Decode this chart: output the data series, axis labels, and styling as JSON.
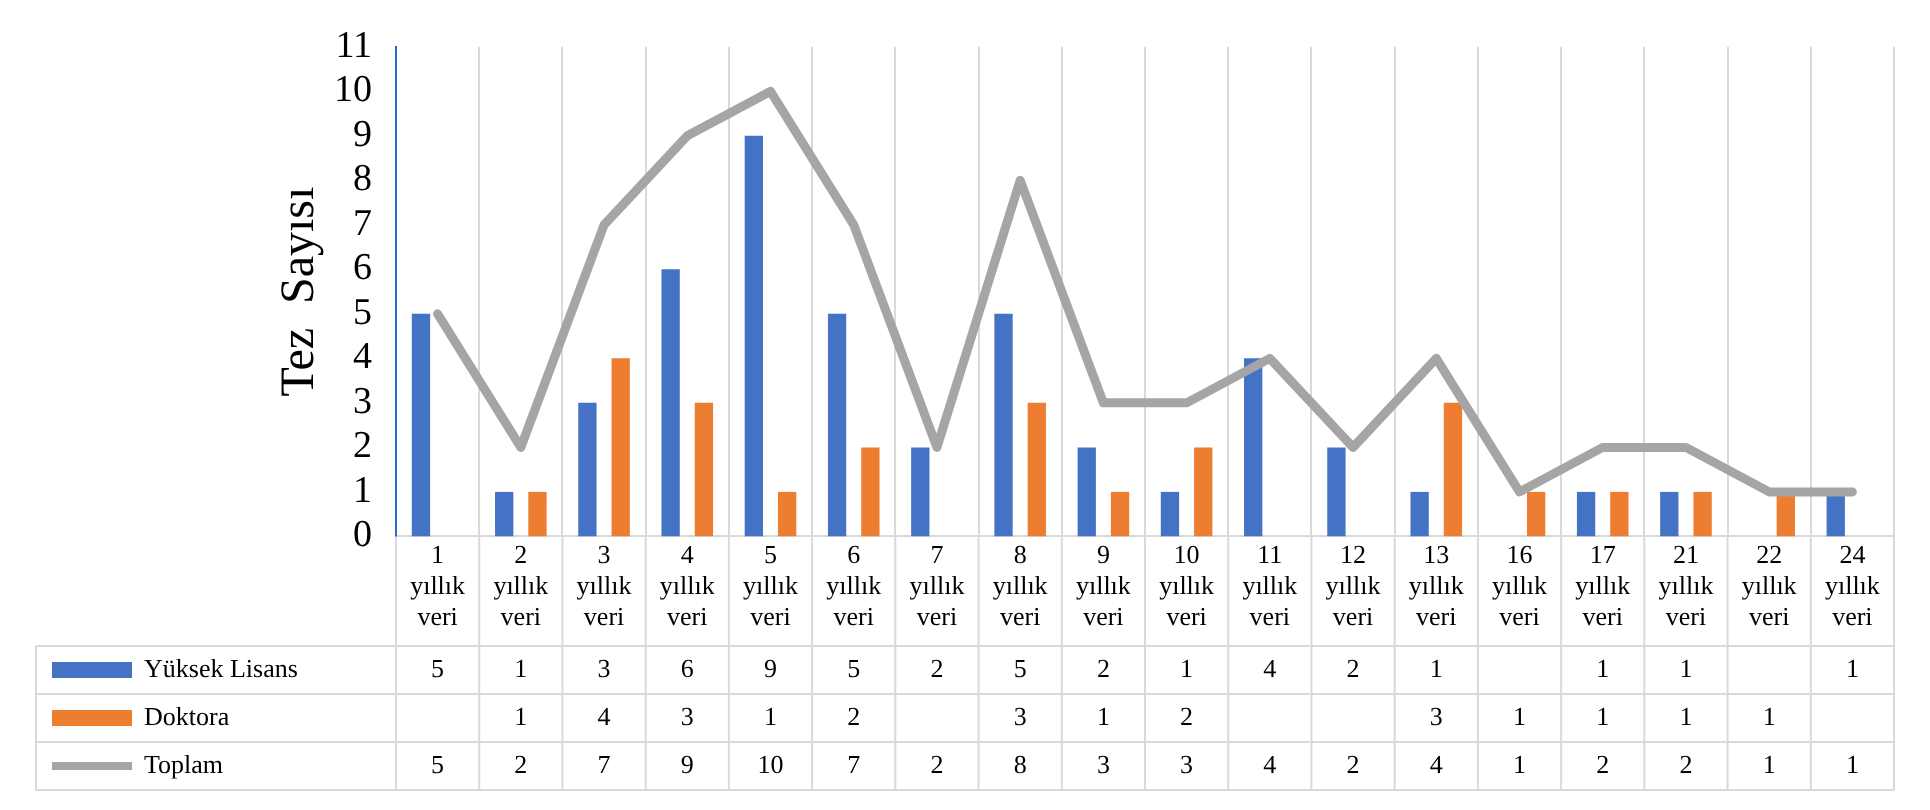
{
  "chart_data": {
    "type": "bar",
    "ylabel": "Tez  Sayısı",
    "categories": [
      "1 yıllık veri",
      "2 yıllık veri",
      "3 yıllık veri",
      "4 yıllık veri",
      "5 yıllık veri",
      "6 yıllık veri",
      "7 yıllık veri",
      "8 yıllık veri",
      "9 yıllık veri",
      "10 yıllık veri",
      "11 yıllık veri",
      "12 yıllık veri",
      "13 yıllık veri",
      "16 yıllık veri",
      "17 yıllık veri",
      "21 yıllık veri",
      "22 yıllık veri",
      "24 yıllık veri"
    ],
    "series": [
      {
        "name": "Yüksek Lisans",
        "color": "#4472c4",
        "values": [
          5,
          1,
          3,
          6,
          9,
          5,
          2,
          5,
          2,
          1,
          4,
          2,
          1,
          null,
          1,
          1,
          null,
          1
        ]
      },
      {
        "name": "Doktora",
        "color": "#ed7d31",
        "values": [
          null,
          1,
          4,
          3,
          1,
          2,
          null,
          3,
          1,
          2,
          null,
          null,
          3,
          1,
          1,
          1,
          1,
          null
        ]
      },
      {
        "name": "Toplam",
        "type": "line",
        "color": "#a5a5a5",
        "values": [
          5,
          2,
          7,
          9,
          10,
          7,
          2,
          8,
          3,
          3,
          4,
          2,
          4,
          1,
          2,
          2,
          1,
          1
        ]
      }
    ],
    "ylim": [
      0,
      11
    ],
    "yticks": [
      0,
      1,
      2,
      3,
      4,
      5,
      6,
      7,
      8,
      9,
      10,
      11
    ],
    "grid": "x",
    "legend": "bottom",
    "data_labels": true,
    "marker": "none",
    "line_style": "solid"
  }
}
